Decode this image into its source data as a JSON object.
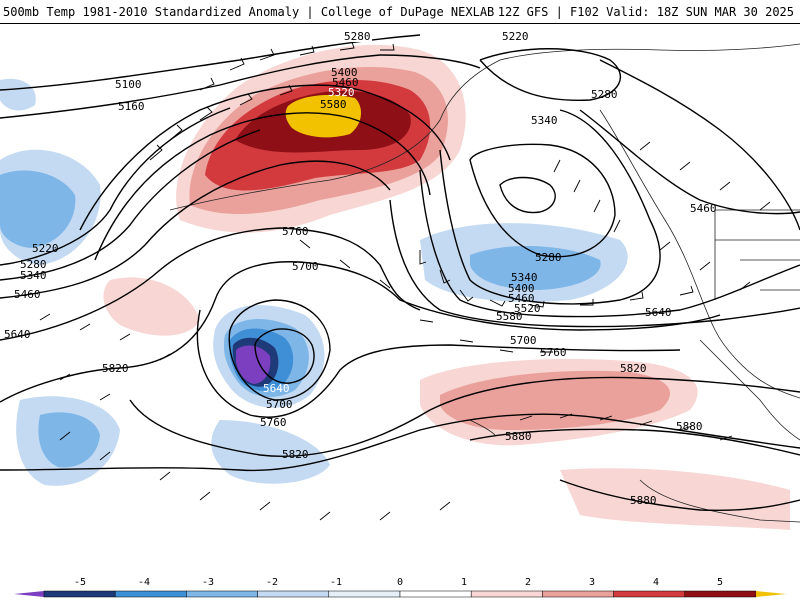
{
  "header": {
    "title": "500mb Temp 1981-2010 Standardized Anomaly | College of DuPage NEXLAB",
    "run": "12Z GFS | F102 Valid: 18Z SUN MAR 30 2025"
  },
  "contour_labels": [
    "5280",
    "5220",
    "5400",
    "5320",
    "5460",
    "5580",
    "5100",
    "5160",
    "5280",
    "5340",
    "5760",
    "5700",
    "5220",
    "5280",
    "5340",
    "5460",
    "5640",
    "5460",
    "5280",
    "5340",
    "5400",
    "5460",
    "5520",
    "5580",
    "5640",
    "5700",
    "5760",
    "5820",
    "5640",
    "5700",
    "5760",
    "5820",
    "5820",
    "5880",
    "5880",
    "5880"
  ],
  "colorbar": {
    "ticks": [
      "-5",
      "-4",
      "-3",
      "-2",
      "-1",
      "0",
      "1",
      "2",
      "3",
      "4",
      "5"
    ],
    "colors": [
      "#7b3fbf",
      "#1f3a78",
      "#3f8fd6",
      "#7fb6e8",
      "#c3daf2",
      "#e6eef8",
      "#ffffff",
      "#f7d6d3",
      "#eba19b",
      "#d23a3e",
      "#8f0f16",
      "#f2c200"
    ]
  }
}
